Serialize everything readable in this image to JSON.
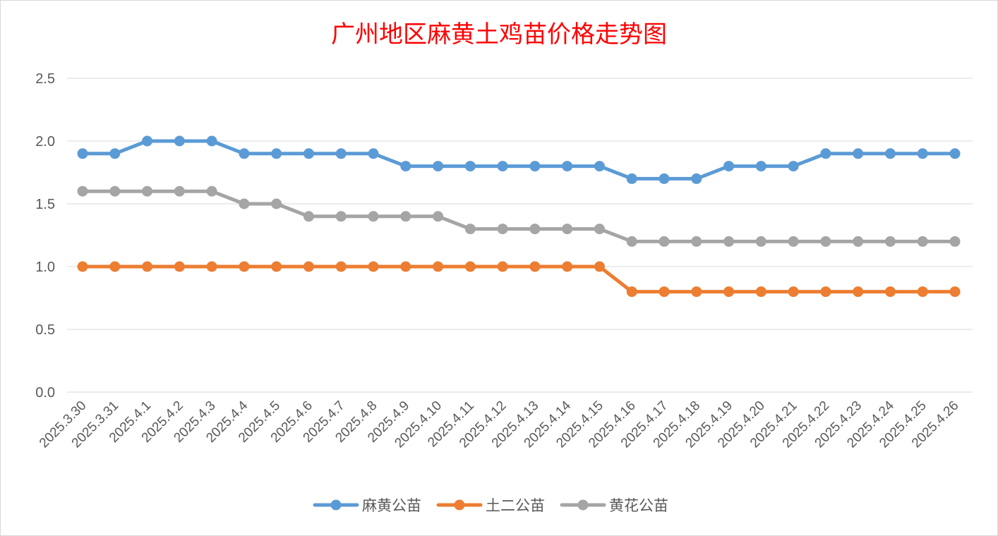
{
  "chart_data": {
    "type": "line",
    "title": "广州地区麻黄土鸡苗价格走势图",
    "xlabel": "",
    "ylabel": "",
    "ylim": [
      0,
      2.5
    ],
    "yticks": [
      "0.0",
      "0.5",
      "1.0",
      "1.5",
      "2.0",
      "2.5"
    ],
    "grid": true,
    "legend_position": "bottom",
    "categories": [
      "2025.3.30",
      "2025.3.31",
      "2025.4.1",
      "2025.4.2",
      "2025.4.3",
      "2025.4.4",
      "2025.4.5",
      "2025.4.6",
      "2025.4.7",
      "2025.4.8",
      "2025.4.9",
      "2025.4.10",
      "2025.4.11",
      "2025.4.12",
      "2025.4.13",
      "2025.4.14",
      "2025.4.15",
      "2025.4.16",
      "2025.4.17",
      "2025.4.18",
      "2025.4.19",
      "2025.4.20",
      "2025.4.21",
      "2025.4.22",
      "2025.4.23",
      "2025.4.24",
      "2025.4.25",
      "2025.4.26"
    ],
    "series": [
      {
        "name": "麻黄公苗",
        "color": "#5b9bd5",
        "values": [
          1.9,
          1.9,
          2.0,
          2.0,
          2.0,
          1.9,
          1.9,
          1.9,
          1.9,
          1.9,
          1.8,
          1.8,
          1.8,
          1.8,
          1.8,
          1.8,
          1.8,
          1.7,
          1.7,
          1.7,
          1.8,
          1.8,
          1.8,
          1.9,
          1.9,
          1.9,
          1.9,
          1.9
        ]
      },
      {
        "name": "土二公苗",
        "color": "#ed7d31",
        "values": [
          1.0,
          1.0,
          1.0,
          1.0,
          1.0,
          1.0,
          1.0,
          1.0,
          1.0,
          1.0,
          1.0,
          1.0,
          1.0,
          1.0,
          1.0,
          1.0,
          1.0,
          0.8,
          0.8,
          0.8,
          0.8,
          0.8,
          0.8,
          0.8,
          0.8,
          0.8,
          0.8,
          0.8
        ]
      },
      {
        "name": "黄花公苗",
        "color": "#a5a5a5",
        "values": [
          1.6,
          1.6,
          1.6,
          1.6,
          1.6,
          1.5,
          1.5,
          1.4,
          1.4,
          1.4,
          1.4,
          1.4,
          1.3,
          1.3,
          1.3,
          1.3,
          1.3,
          1.2,
          1.2,
          1.2,
          1.2,
          1.2,
          1.2,
          1.2,
          1.2,
          1.2,
          1.2,
          1.2
        ]
      }
    ]
  }
}
